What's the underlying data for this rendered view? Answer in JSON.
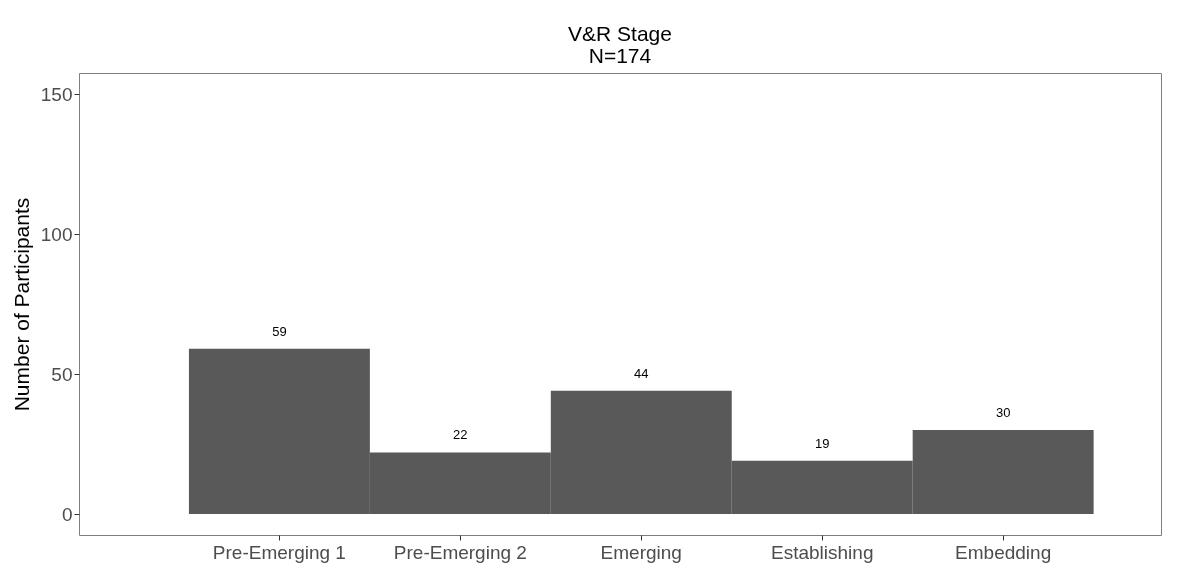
{
  "chart_data": {
    "type": "bar",
    "title": "V&R Stage",
    "subtitle": "N=174",
    "ylabel": "Number of Participants",
    "categories": [
      "Pre-Emerging 1",
      "Pre-Emerging 2",
      "Emerging",
      "Establishing",
      "Embedding"
    ],
    "values": [
      59,
      22,
      44,
      19,
      30
    ],
    "color": "#595959",
    "ylim": [
      -7.5,
      157.5
    ],
    "yticks": [
      0,
      50,
      100,
      150
    ],
    "data_labels": true
  }
}
